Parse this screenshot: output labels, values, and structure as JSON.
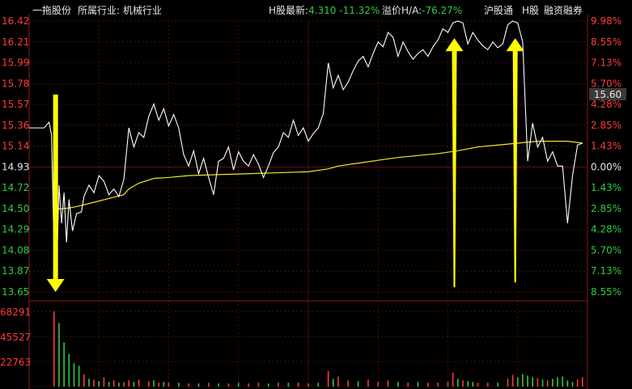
{
  "header": {
    "stock_name": "一拖股份",
    "industry_label": "所属行业:",
    "industry_value": "机械行业",
    "h_latest_label": "H股最新:",
    "h_latest_value": "4.310",
    "h_latest_change": "-11.32%",
    "premium_label": "溢价H/A:",
    "premium_value": "-76.27%",
    "links": [
      "沪股通",
      "H股",
      "融资融券"
    ]
  },
  "colors": {
    "background": "#000000",
    "up": "#ff3b3b",
    "down": "#2ecc40",
    "price_line": "#ffffff",
    "avg_line": "#f5e62a",
    "arrow": "#ffff00",
    "grid": "#8b1a1a"
  },
  "chart_data": {
    "type": "line",
    "price_axis_labels": [
      "16.42",
      "16.21",
      "15.99",
      "15.78",
      "15.57",
      "15.36",
      "15.14",
      "14.93",
      "14.72",
      "14.50",
      "14.29",
      "14.08",
      "13.87",
      "13.65"
    ],
    "percent_axis_labels": [
      "9.98%",
      "8.55%",
      "7.13%",
      "5.70%",
      "4.28%",
      "2.85%",
      "1.43%",
      "0.00%",
      "1.43%",
      "2.85%",
      "4.28%",
      "5.70%",
      "7.13%",
      "8.55%"
    ],
    "price_tag": "15.60",
    "volume_axis_labels": [
      "68291",
      "45527",
      "22763"
    ],
    "ylim": [
      13.58,
      16.42
    ],
    "prev_close": 14.93,
    "price_series": [
      [
        0,
        15.3
      ],
      [
        3,
        15.3
      ],
      [
        4,
        15.36
      ],
      [
        4.5,
        15.22
      ],
      [
        5,
        14.0
      ],
      [
        5.4,
        13.6
      ],
      [
        6,
        14.7
      ],
      [
        6.5,
        14.3
      ],
      [
        7,
        14.62
      ],
      [
        7.5,
        14.1
      ],
      [
        8,
        14.55
      ],
      [
        8.7,
        14.22
      ],
      [
        9.5,
        14.4
      ],
      [
        10.5,
        14.42
      ],
      [
        11,
        14.58
      ],
      [
        12,
        14.7
      ],
      [
        13,
        14.62
      ],
      [
        14,
        14.8
      ],
      [
        15,
        14.74
      ],
      [
        16,
        14.6
      ],
      [
        17,
        14.66
      ],
      [
        18,
        14.58
      ],
      [
        19,
        14.76
      ],
      [
        20,
        15.3
      ],
      [
        21,
        15.1
      ],
      [
        22,
        15.25
      ],
      [
        23,
        15.2
      ],
      [
        24,
        15.42
      ],
      [
        25,
        15.55
      ],
      [
        26,
        15.38
      ],
      [
        27,
        15.5
      ],
      [
        28,
        15.32
      ],
      [
        29,
        15.44
      ],
      [
        30,
        15.3
      ],
      [
        31,
        15.02
      ],
      [
        32,
        14.9
      ],
      [
        33,
        15.06
      ],
      [
        34,
        14.82
      ],
      [
        35,
        14.98
      ],
      [
        36,
        14.78
      ],
      [
        37,
        14.6
      ],
      [
        38,
        14.95
      ],
      [
        39,
        14.98
      ],
      [
        40,
        15.1
      ],
      [
        41,
        14.86
      ],
      [
        42,
        15.05
      ],
      [
        43,
        14.95
      ],
      [
        44,
        14.9
      ],
      [
        45,
        15.02
      ],
      [
        46,
        14.92
      ],
      [
        47,
        14.78
      ],
      [
        48,
        14.9
      ],
      [
        49,
        15.04
      ],
      [
        50,
        15.1
      ],
      [
        51,
        15.25
      ],
      [
        52,
        15.2
      ],
      [
        53,
        15.38
      ],
      [
        54,
        15.22
      ],
      [
        55,
        15.3
      ],
      [
        56,
        15.16
      ],
      [
        57,
        15.24
      ],
      [
        58,
        15.3
      ],
      [
        59,
        15.45
      ],
      [
        60,
        15.98
      ],
      [
        61,
        15.72
      ],
      [
        62,
        15.85
      ],
      [
        63,
        15.7
      ],
      [
        64,
        15.78
      ],
      [
        65,
        15.9
      ],
      [
        66,
        16.0
      ],
      [
        67,
        16.05
      ],
      [
        68,
        15.94
      ],
      [
        69,
        16.08
      ],
      [
        70,
        16.2
      ],
      [
        71,
        16.15
      ],
      [
        72,
        16.3
      ],
      [
        73,
        16.25
      ],
      [
        74,
        16.05
      ],
      [
        75,
        16.2
      ],
      [
        76,
        16.1
      ],
      [
        77,
        16.02
      ],
      [
        78,
        16.08
      ],
      [
        79,
        16.12
      ],
      [
        80,
        16.05
      ],
      [
        81,
        16.15
      ],
      [
        82,
        16.22
      ],
      [
        83,
        16.34
      ],
      [
        84,
        16.3
      ],
      [
        85,
        16.4
      ],
      [
        86,
        16.42
      ],
      [
        87,
        16.4
      ],
      [
        88,
        16.18
      ],
      [
        89,
        16.3
      ],
      [
        90,
        16.22
      ],
      [
        91,
        16.16
      ],
      [
        92,
        16.12
      ],
      [
        93,
        16.2
      ],
      [
        94,
        16.14
      ],
      [
        95,
        16.18
      ],
      [
        96,
        16.38
      ],
      [
        97,
        16.42
      ],
      [
        98,
        16.4
      ],
      [
        99,
        16.2
      ],
      [
        100,
        14.95
      ],
      [
        101,
        15.35
      ],
      [
        102,
        15.1
      ],
      [
        103,
        15.2
      ],
      [
        104,
        14.95
      ],
      [
        105,
        15.05
      ],
      [
        106,
        14.9
      ],
      [
        107,
        14.9
      ],
      [
        108,
        14.3
      ],
      [
        109,
        14.8
      ],
      [
        110,
        15.12
      ],
      [
        111,
        15.14
      ]
    ],
    "avg_series": [
      [
        5,
        14.5
      ],
      [
        6,
        14.45
      ],
      [
        8,
        14.46
      ],
      [
        10,
        14.48
      ],
      [
        13,
        14.52
      ],
      [
        16,
        14.56
      ],
      [
        19,
        14.6
      ],
      [
        20,
        14.66
      ],
      [
        22,
        14.72
      ],
      [
        25,
        14.77
      ],
      [
        28,
        14.78
      ],
      [
        32,
        14.8
      ],
      [
        38,
        14.81
      ],
      [
        44,
        14.82
      ],
      [
        50,
        14.83
      ],
      [
        56,
        14.84
      ],
      [
        60,
        14.87
      ],
      [
        62,
        14.9
      ],
      [
        66,
        14.93
      ],
      [
        70,
        14.96
      ],
      [
        74,
        14.99
      ],
      [
        78,
        15.01
      ],
      [
        82,
        15.03
      ],
      [
        86,
        15.06
      ],
      [
        88,
        15.08
      ],
      [
        90,
        15.1
      ],
      [
        94,
        15.12
      ],
      [
        98,
        15.14
      ],
      [
        102,
        15.16
      ],
      [
        108,
        15.16
      ],
      [
        111,
        15.14
      ]
    ],
    "volume_ylim": [
      0,
      97000
    ],
    "volume_bars": [
      [
        5,
        97000,
        "up"
      ],
      [
        6,
        82000,
        "down"
      ],
      [
        7,
        57000,
        "down"
      ],
      [
        8,
        42000,
        "down"
      ],
      [
        9,
        30000,
        "down"
      ],
      [
        10,
        27000,
        "down"
      ],
      [
        11,
        16000,
        "up"
      ],
      [
        12,
        10000,
        "down"
      ],
      [
        13,
        9000,
        "up"
      ],
      [
        14,
        7000,
        "down"
      ],
      [
        15,
        12000,
        "up"
      ],
      [
        16,
        6000,
        "down"
      ],
      [
        17,
        8000,
        "up"
      ],
      [
        18,
        5000,
        "down"
      ],
      [
        19,
        6000,
        "up"
      ],
      [
        20,
        8000,
        "up"
      ],
      [
        21,
        6000,
        "down"
      ],
      [
        22,
        9000,
        "up"
      ],
      [
        24,
        7000,
        "up"
      ],
      [
        25,
        8000,
        "down"
      ],
      [
        26,
        5000,
        "up"
      ],
      [
        27,
        6000,
        "down"
      ],
      [
        28,
        5000,
        "up"
      ],
      [
        30,
        5000,
        "down"
      ],
      [
        32,
        4000,
        "up"
      ],
      [
        34,
        4000,
        "down"
      ],
      [
        36,
        5000,
        "up"
      ],
      [
        38,
        4000,
        "down"
      ],
      [
        40,
        4000,
        "up"
      ],
      [
        42,
        5000,
        "down"
      ],
      [
        44,
        4000,
        "up"
      ],
      [
        46,
        5000,
        "up"
      ],
      [
        48,
        4000,
        "down"
      ],
      [
        50,
        5000,
        "up"
      ],
      [
        52,
        5000,
        "down"
      ],
      [
        54,
        5000,
        "up"
      ],
      [
        56,
        4000,
        "up"
      ],
      [
        58,
        5000,
        "down"
      ],
      [
        60,
        20000,
        "up"
      ],
      [
        61,
        10000,
        "down"
      ],
      [
        62,
        13000,
        "up"
      ],
      [
        64,
        8000,
        "up"
      ],
      [
        66,
        7000,
        "down"
      ],
      [
        68,
        9000,
        "up"
      ],
      [
        70,
        6000,
        "up"
      ],
      [
        72,
        8000,
        "up"
      ],
      [
        74,
        6000,
        "down"
      ],
      [
        76,
        5000,
        "up"
      ],
      [
        78,
        6000,
        "down"
      ],
      [
        80,
        5000,
        "up"
      ],
      [
        82,
        5000,
        "up"
      ],
      [
        84,
        6000,
        "up"
      ],
      [
        85,
        18000,
        "up"
      ],
      [
        86,
        10000,
        "down"
      ],
      [
        87,
        8000,
        "up"
      ],
      [
        88,
        7000,
        "down"
      ],
      [
        89,
        6000,
        "down"
      ],
      [
        90,
        5000,
        "up"
      ],
      [
        92,
        5000,
        "up"
      ],
      [
        94,
        5000,
        "down"
      ],
      [
        96,
        10000,
        "up"
      ],
      [
        97,
        15000,
        "up"
      ],
      [
        98,
        12000,
        "down"
      ],
      [
        99,
        16000,
        "down"
      ],
      [
        100,
        14000,
        "down"
      ],
      [
        101,
        12000,
        "down"
      ],
      [
        102,
        11000,
        "up"
      ],
      [
        103,
        9000,
        "down"
      ],
      [
        104,
        8000,
        "up"
      ],
      [
        105,
        10000,
        "down"
      ],
      [
        106,
        12000,
        "down"
      ],
      [
        107,
        13000,
        "down"
      ],
      [
        108,
        8000,
        "down"
      ],
      [
        109,
        6000,
        "down"
      ],
      [
        110,
        9000,
        "up"
      ],
      [
        111,
        12000,
        "up"
      ]
    ],
    "x_max": 112,
    "arrows": [
      {
        "x": 5.3,
        "from": 15.65,
        "to": 13.58,
        "dir": "down"
      },
      {
        "x": 85.3,
        "from": 13.63,
        "to": 16.24,
        "dir": "up"
      },
      {
        "x": 97.5,
        "from": 13.68,
        "to": 16.24,
        "dir": "up"
      }
    ]
  }
}
